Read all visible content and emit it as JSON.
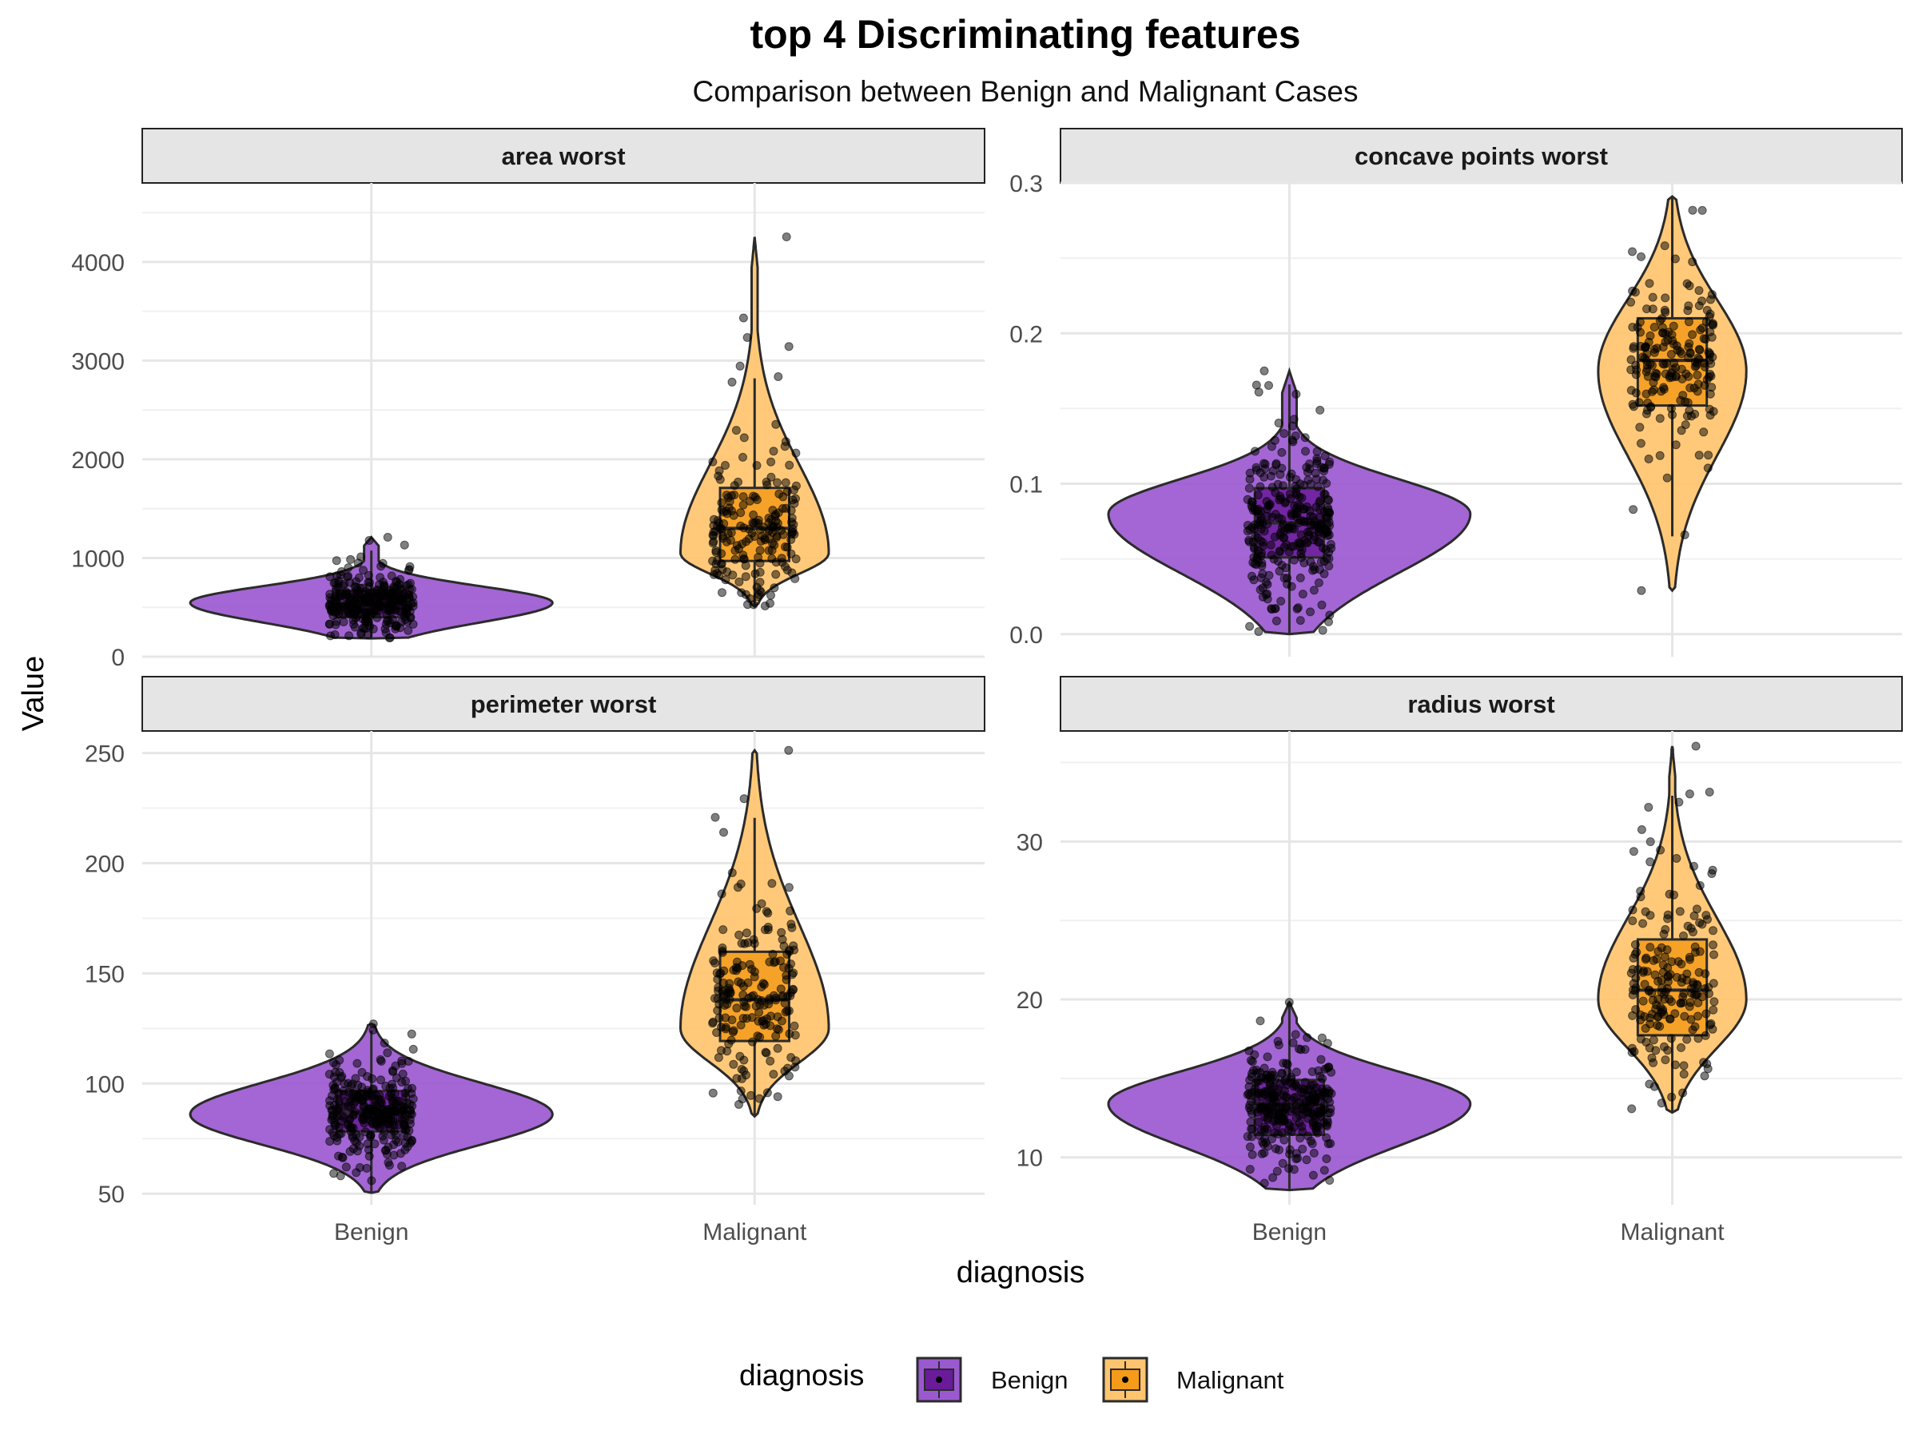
{
  "title": "top 4 Discriminating features",
  "subtitle": "Comparison between Benign and Malignant Cases",
  "xlabel": "diagnosis",
  "ylabel": "Value",
  "legend": {
    "title": "diagnosis",
    "items": [
      {
        "label": "Benign",
        "fill": "#9b59d0",
        "box": "#6a1b9a"
      },
      {
        "label": "Malignant",
        "fill": "#ffc46e",
        "box": "#f59b1a"
      }
    ]
  },
  "colors": {
    "benign_violin": "#9b59d0",
    "benign_box": "#6a1b9a",
    "malignant_violin": "#ffc46e",
    "malignant_box": "#f59b1a",
    "outline": "#2b2b2b",
    "points": "#000000"
  },
  "chart_data": [
    {
      "type": "violin",
      "panel": "area worst",
      "categories": [
        "Benign",
        "Malignant"
      ],
      "ylim": [
        0,
        4800
      ],
      "yticks": [
        0,
        1000,
        2000,
        3000,
        4000
      ],
      "yticklabels": [
        "0",
        "1000",
        "2000",
        "3000",
        "4000"
      ],
      "series": [
        {
          "name": "Benign",
          "min": 185,
          "q1": 400,
          "median": 547,
          "q3": 670,
          "max": 1210,
          "density_peak": 547,
          "outliers": [
            1210
          ]
        },
        {
          "name": "Malignant",
          "min": 508,
          "q1": 970,
          "median": 1300,
          "q3": 1710,
          "max": 4254,
          "density_peak": 1050,
          "outliers": [
            4254,
            3432,
            3234,
            3143,
            2944,
            2782
          ]
        }
      ]
    },
    {
      "type": "violin",
      "panel": "concave points worst",
      "categories": [
        "Benign",
        "Malignant"
      ],
      "ylim": [
        -0.015,
        0.3
      ],
      "yticks": [
        0.0,
        0.1,
        0.2,
        0.3
      ],
      "yticklabels": [
        "0.0",
        "0.1",
        "0.2",
        "0.3"
      ],
      "series": [
        {
          "name": "Benign",
          "min": 0.0,
          "q1": 0.051,
          "median": 0.074,
          "q3": 0.097,
          "max": 0.175,
          "density_peak": 0.08,
          "outliers": [
            0.175
          ]
        },
        {
          "name": "Malignant",
          "min": 0.029,
          "q1": 0.152,
          "median": 0.182,
          "q3": 0.21,
          "max": 0.291,
          "density_peak": 0.175,
          "outliers": [
            0.029,
            0.066
          ]
        }
      ]
    },
    {
      "type": "violin",
      "panel": "perimeter worst",
      "categories": [
        "Benign",
        "Malignant"
      ],
      "ylim": [
        45,
        260
      ],
      "yticks": [
        50,
        100,
        150,
        200,
        250
      ],
      "yticklabels": [
        "50",
        "100",
        "150",
        "200",
        "250"
      ],
      "series": [
        {
          "name": "Benign",
          "min": 50.4,
          "q1": 78.3,
          "median": 86.9,
          "q3": 96.6,
          "max": 127.1,
          "density_peak": 86,
          "outliers": [
            127.1
          ]
        },
        {
          "name": "Malignant",
          "min": 85.1,
          "q1": 119.3,
          "median": 138.0,
          "q3": 159.8,
          "max": 251.2,
          "density_peak": 125,
          "outliers": [
            251.2,
            229.3,
            220.8,
            214.0
          ]
        }
      ]
    },
    {
      "type": "violin",
      "panel": "radius worst",
      "categories": [
        "Benign",
        "Malignant"
      ],
      "ylim": [
        7,
        37
      ],
      "yticks": [
        10,
        20,
        30
      ],
      "yticklabels": [
        "10",
        "20",
        "30"
      ],
      "series": [
        {
          "name": "Benign",
          "min": 7.93,
          "q1": 11.43,
          "median": 13.35,
          "q3": 14.9,
          "max": 19.82,
          "density_peak": 13.4,
          "outliers": [
            19.82
          ]
        },
        {
          "name": "Malignant",
          "min": 12.84,
          "q1": 17.73,
          "median": 20.59,
          "q3": 23.8,
          "max": 36.04,
          "density_peak": 20,
          "outliers": [
            36.04,
            33.13,
            32.49,
            30.75
          ]
        }
      ]
    }
  ]
}
